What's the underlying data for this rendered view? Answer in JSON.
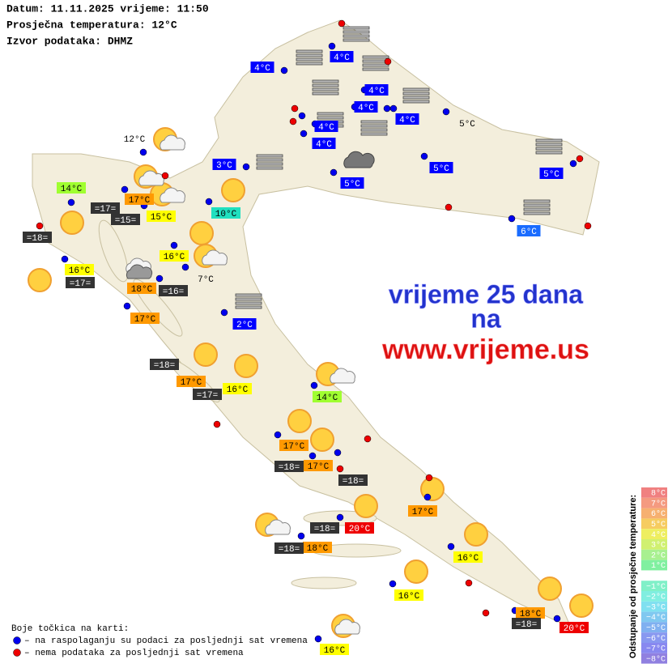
{
  "header": {
    "lines": [
      "Datum: 11.11.2025 vrijeme: 11:50",
      "Prosječna temperatura: 12°C",
      "Izvor podataka: DHMZ"
    ]
  },
  "promo": {
    "lines": [
      "vrijeme 25 dana",
      "na",
      "www.vrijeme.us"
    ]
  },
  "stations": [
    {
      "label": "4°C",
      "color": "#0000ff"
    },
    {
      "label": "4°C",
      "color": "#0000ff"
    },
    {
      "label": "4°C",
      "color": "#0000ff"
    },
    {
      "label": "4°C",
      "color": "#0000ff"
    },
    {
      "label": "4°C",
      "color": "#0000ff"
    },
    {
      "label": "4°C",
      "color": "#0000ff"
    },
    {
      "label": "4°C",
      "color": "#0000ff"
    },
    {
      "label": "3°C",
      "color": "#0000ff"
    },
    {
      "label": "5°C",
      "color": "#0000ff"
    },
    {
      "label": "5°C",
      "color": "#0000ff"
    },
    {
      "label": "5°C",
      "color": "#0000ff"
    },
    {
      "label": "6°C",
      "color": "#1a6cff"
    },
    {
      "label": "2°C",
      "color": "#0000ff"
    },
    {
      "label": "10°C",
      "color": "#20e0c0"
    },
    {
      "label": "14°C",
      "color": "#a0ff30"
    },
    {
      "label": "14°C",
      "color": "#a0ff30"
    },
    {
      "label": "15°C",
      "color": "#ffff00"
    },
    {
      "label": "16°C",
      "color": "#ffff00"
    },
    {
      "label": "16°C",
      "color": "#ffff00"
    },
    {
      "label": "16°C",
      "color": "#ffff00"
    },
    {
      "label": "16°C",
      "color": "#ffff00"
    },
    {
      "label": "16°C",
      "color": "#ffff00"
    },
    {
      "label": "16°C",
      "color": "#ffff00"
    },
    {
      "label": "17°C",
      "color": "#ff9900"
    },
    {
      "label": "18°C",
      "color": "#ff9900"
    },
    {
      "label": "17°C",
      "color": "#ff9900"
    },
    {
      "label": "17°C",
      "color": "#ff9900"
    },
    {
      "label": "17°C",
      "color": "#ff9900"
    },
    {
      "label": "17°C",
      "color": "#ff9900"
    },
    {
      "label": "17°C",
      "color": "#ff9900"
    },
    {
      "label": "18°C",
      "color": "#ff9900"
    },
    {
      "label": "18°C",
      "color": "#ff9900"
    },
    {
      "label": "20°C",
      "color": "#ee0000"
    },
    {
      "label": "20°C",
      "color": "#ee0000"
    },
    {
      "label": "=17=",
      "color": "#333333"
    },
    {
      "label": "=15=",
      "color": "#333333"
    },
    {
      "label": "=18=",
      "color": "#333333"
    },
    {
      "label": "=17=",
      "color": "#333333"
    },
    {
      "label": "=16=",
      "color": "#333333"
    },
    {
      "label": "=18=",
      "color": "#333333"
    },
    {
      "label": "=17=",
      "color": "#333333"
    },
    {
      "label": "=18=",
      "color": "#333333"
    },
    {
      "label": "=18=",
      "color": "#333333"
    },
    {
      "label": "=18=",
      "color": "#333333"
    },
    {
      "label": "=18=",
      "color": "#333333"
    },
    {
      "label": "=18=",
      "color": "#333333"
    },
    {
      "label": "12°C"
    },
    {
      "label": "5°C"
    },
    {
      "label": "7°C"
    }
  ],
  "legend": {
    "title": "Boje točkica na karti:",
    "items": [
      {
        "label": "– na raspolaganju su podaci za posljednji sat vremena",
        "color": "#0000ee"
      },
      {
        "label": "– nema podataka za posljednji sat vremena",
        "color": "#ee0000"
      }
    ]
  },
  "scale": {
    "title": "Odstupanje od prosječne temperature:",
    "labels": [
      "8°C",
      "7°C",
      "6°C",
      "5°C",
      "4°C",
      "3°C",
      "2°C",
      "1°C",
      "−1°C",
      "−2°C",
      "−3°C",
      "−4°C",
      "−5°C",
      "−6°C",
      "−7°C",
      "−8°C"
    ],
    "colors": [
      "#f08080",
      "#f49a80",
      "#f6b070",
      "#f6cc60",
      "#eeee60",
      "#d0f070",
      "#a8f090",
      "#80f0a0",
      "#80f0c8",
      "#80eee0",
      "#80e0f0",
      "#80c8f0",
      "#80b0f0",
      "#8898f0",
      "#8888f0",
      "#9080e0"
    ]
  }
}
